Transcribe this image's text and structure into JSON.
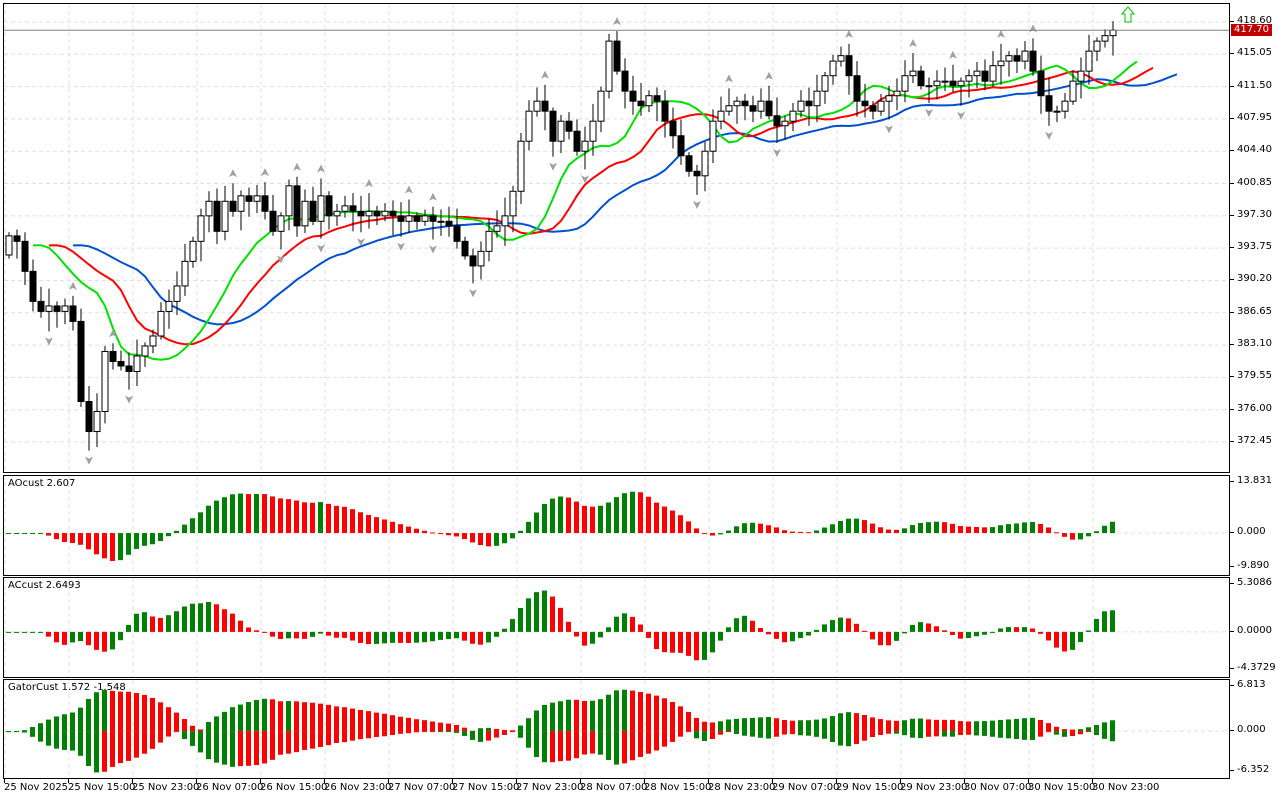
{
  "chart_data": {
    "type": "candlestick",
    "timeframe": "H1",
    "current_price": "417.70",
    "price_axis": [
      "418.60",
      "415.05",
      "411.50",
      "407.95",
      "404.40",
      "400.85",
      "397.30",
      "393.75",
      "390.20",
      "386.65",
      "383.10",
      "379.55",
      "376.00",
      "372.45"
    ],
    "price_range": [
      372.45,
      418.6
    ],
    "time_labels": [
      "25 Nov 2025",
      "25 Nov 15:00",
      "25 Nov 23:00",
      "26 Nov 07:00",
      "26 Nov 15:00",
      "26 Nov 23:00",
      "27 Nov 07:00",
      "27 Nov 15:00",
      "27 Nov 23:00",
      "28 Nov 07:00",
      "28 Nov 15:00",
      "28 Nov 23:00",
      "29 Nov 07:00",
      "29 Nov 15:00",
      "29 Nov 23:00",
      "30 Nov 07:00",
      "30 Nov 15:00",
      "30 Nov 23:00"
    ],
    "first_open": 393.0,
    "closes": [
      395.1,
      394.5,
      391.2,
      387.9,
      386.8,
      387.4,
      386.8,
      387.4,
      385.7,
      376.9,
      373.6,
      375.8,
      382.4,
      381.3,
      380.8,
      380.2,
      381.9,
      383.0,
      384.1,
      386.8,
      387.9,
      389.6,
      392.3,
      394.5,
      397.3,
      398.9,
      395.6,
      398.9,
      397.8,
      399.5,
      398.9,
      399.5,
      397.8,
      395.6,
      397.3,
      400.6,
      396.2,
      398.9,
      396.7,
      399.5,
      397.3,
      397.8,
      398.4,
      397.8,
      397.3,
      397.8,
      397.3,
      397.8,
      397.3,
      396.7,
      397.3,
      396.7,
      397.3,
      396.7,
      396.7,
      396.2,
      394.5,
      392.9,
      391.8,
      393.4,
      395.6,
      396.2,
      397.3,
      400.0,
      405.5,
      408.8,
      409.9,
      408.8,
      405.5,
      407.7,
      406.6,
      404.4,
      405.5,
      407.7,
      411.0,
      416.5,
      413.2,
      411.0,
      409.9,
      409.4,
      410.5,
      409.9,
      407.7,
      406.1,
      403.9,
      402.2,
      401.7,
      404.4,
      407.7,
      408.8,
      409.4,
      409.9,
      409.4,
      408.8,
      409.9,
      408.3,
      407.2,
      407.7,
      408.8,
      409.9,
      409.4,
      411.0,
      412.7,
      414.3,
      414.9,
      412.7,
      409.9,
      409.4,
      408.8,
      409.9,
      410.5,
      411.0,
      412.7,
      413.2,
      411.6,
      411.6,
      412.1,
      412.1,
      411.6,
      412.1,
      412.7,
      413.2,
      412.1,
      413.8,
      414.3,
      414.9,
      414.3,
      415.4,
      413.2,
      410.5,
      408.8,
      408.8,
      409.9,
      412.1,
      413.2,
      415.4,
      416.5,
      417.1,
      417.7
    ],
    "series": [
      {
        "name": "Alligator Jaw",
        "period": 13,
        "shift": 8,
        "color": "#0050d0"
      },
      {
        "name": "Alligator Teeth",
        "period": 8,
        "shift": 5,
        "color": "#ff0000"
      },
      {
        "name": "Alligator Lips",
        "period": 5,
        "shift": 3,
        "color": "#00e000"
      }
    ],
    "indicators": [
      {
        "label": "AOcust 2.607",
        "axis": [
          "13.831",
          "0.000",
          "-9.890"
        ],
        "range": [
          -9.89,
          13.831
        ]
      },
      {
        "label": "ACcust 2.6493",
        "axis": [
          "5.3086",
          "0.0000",
          "-4.3729"
        ],
        "range": [
          -4.3729,
          5.3086
        ]
      },
      {
        "label": "GatorCust 1.572 -1.548",
        "axis": [
          "6.813",
          "0.000",
          "-6.352"
        ],
        "range": [
          -6.352,
          6.813
        ]
      }
    ]
  },
  "colors": {
    "up_bar": "#008000",
    "down_bar": "#ff0000",
    "price_tag": "#c00000",
    "fractal": "#a0a0a0",
    "signal_arrow": "#00c000"
  }
}
